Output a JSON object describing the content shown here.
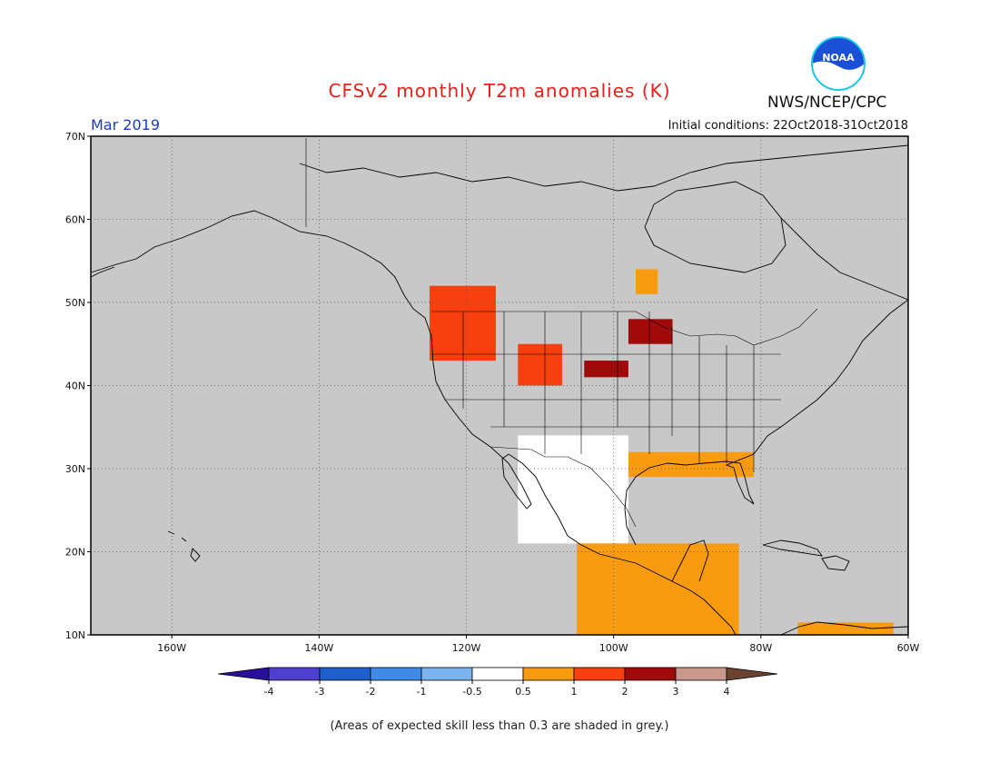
{
  "title": "CFSv2 monthly T2m anomalies (K)",
  "month": "Mar 2019",
  "initial_conditions": "Initial conditions: 22Oct2018-31Oct2018",
  "agency": "NWS/NCEP/CPC",
  "logo_text": "NOAA",
  "footnote": "(Areas of expected skill less than 0.3 are shaded in grey.)",
  "map": {
    "lon_range": [
      -171,
      -60
    ],
    "lat_range": [
      10,
      70
    ],
    "lat_ticks": [
      {
        "value": 70,
        "label": "70N"
      },
      {
        "value": 60,
        "label": "60N"
      },
      {
        "value": 50,
        "label": "50N"
      },
      {
        "value": 40,
        "label": "40N"
      },
      {
        "value": 30,
        "label": "30N"
      },
      {
        "value": 20,
        "label": "20N"
      },
      {
        "value": 10,
        "label": "10N"
      }
    ],
    "lon_ticks": [
      {
        "value": -160,
        "label": "160W"
      },
      {
        "value": -140,
        "label": "140W"
      },
      {
        "value": -120,
        "label": "120W"
      },
      {
        "value": -100,
        "label": "100W"
      },
      {
        "value": -80,
        "label": "80W"
      },
      {
        "value": -60,
        "label": "60W"
      }
    ],
    "background_color": "#c8c8c8",
    "grid": "dotted"
  },
  "colorbar": {
    "colors": [
      "#2a0f99",
      "#4f3fd0",
      "#1f5fcc",
      "#3f8ae6",
      "#7cb4ef",
      "#ffffff",
      "#f89b10",
      "#f8400f",
      "#a00a0a",
      "#c8998b",
      "#6b4230"
    ],
    "labels": [
      "-4",
      "-3",
      "-2",
      "-1",
      "-0.5",
      "0.5",
      "1",
      "2",
      "3",
      "4"
    ]
  },
  "anomaly_regions": [
    {
      "name": "pacific-northwest",
      "color": "#f8400f",
      "lon": [
        -125,
        -116
      ],
      "lat": [
        43,
        52
      ]
    },
    {
      "name": "idaho-wyoming",
      "color": "#f8400f",
      "lon": [
        -113,
        -107
      ],
      "lat": [
        40,
        45
      ]
    },
    {
      "name": "nebraska",
      "color": "#a00a0a",
      "lon": [
        -104,
        -98
      ],
      "lat": [
        41,
        43
      ]
    },
    {
      "name": "minnesota",
      "color": "#a00a0a",
      "lon": [
        -98,
        -92
      ],
      "lat": [
        45,
        48
      ]
    },
    {
      "name": "ontario",
      "color": "#f89b10",
      "lon": [
        -97,
        -94
      ],
      "lat": [
        51,
        54
      ]
    },
    {
      "name": "gulf-coast",
      "color": "#f89b10",
      "lon": [
        -101,
        -81
      ],
      "lat": [
        29,
        32
      ]
    },
    {
      "name": "southwest-us-mexico",
      "color": "#ffffff",
      "lon": [
        -113,
        -98
      ],
      "lat": [
        21,
        34
      ]
    },
    {
      "name": "mexico-central-america",
      "color": "#f89b10",
      "lon": [
        -105,
        -83
      ],
      "lat": [
        10,
        21
      ]
    },
    {
      "name": "caribbean",
      "color": "#f89b10",
      "lon": [
        -75,
        -62
      ],
      "lat": [
        10,
        11.5
      ]
    }
  ]
}
